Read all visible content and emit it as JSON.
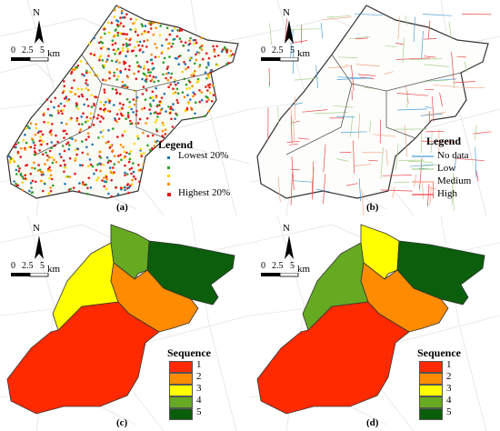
{
  "common": {
    "north_label": "N",
    "scale_labels": [
      "0",
      "2.5",
      "5"
    ],
    "scale_unit": "km"
  },
  "panels": {
    "a": {
      "caption": "(a)",
      "legend_title": "Legend",
      "legend_items": [
        {
          "label": "Lowest 20%",
          "color": "#1f77b4"
        },
        {
          "label": "Highest 20%",
          "color": "#e41a1c"
        }
      ]
    },
    "b": {
      "caption": "(b)",
      "legend_title": "Legend",
      "legend_items": [
        {
          "label": "No data",
          "color": "#4a9fd8"
        },
        {
          "label": "Low",
          "color": "#a8d08d"
        },
        {
          "label": "Medium",
          "color": "#f4a582"
        },
        {
          "label": "High",
          "color": "#e8474b"
        }
      ]
    },
    "c": {
      "caption": "(c)",
      "legend_title": "Sequence",
      "legend_items": [
        {
          "label": "1",
          "color": "#ff2a00"
        },
        {
          "label": "2",
          "color": "#ff8c00"
        },
        {
          "label": "3",
          "color": "#ffff00"
        },
        {
          "label": "4",
          "color": "#66aa22"
        },
        {
          "label": "5",
          "color": "#0b5e0b"
        }
      ],
      "region_sequence": {
        "west": 3,
        "north": 4,
        "northeast": 5,
        "center": 2,
        "south": 1
      }
    },
    "d": {
      "caption": "(d)",
      "legend_title": "Sequence",
      "legend_items": [
        {
          "label": "1",
          "color": "#ff2a00"
        },
        {
          "label": "2",
          "color": "#ff8c00"
        },
        {
          "label": "3",
          "color": "#ffff00"
        },
        {
          "label": "4",
          "color": "#66aa22"
        },
        {
          "label": "5",
          "color": "#0b5e0b"
        }
      ],
      "region_sequence": {
        "west": 4,
        "north": 3,
        "northeast": 5,
        "center": 2,
        "south": 1
      }
    }
  }
}
